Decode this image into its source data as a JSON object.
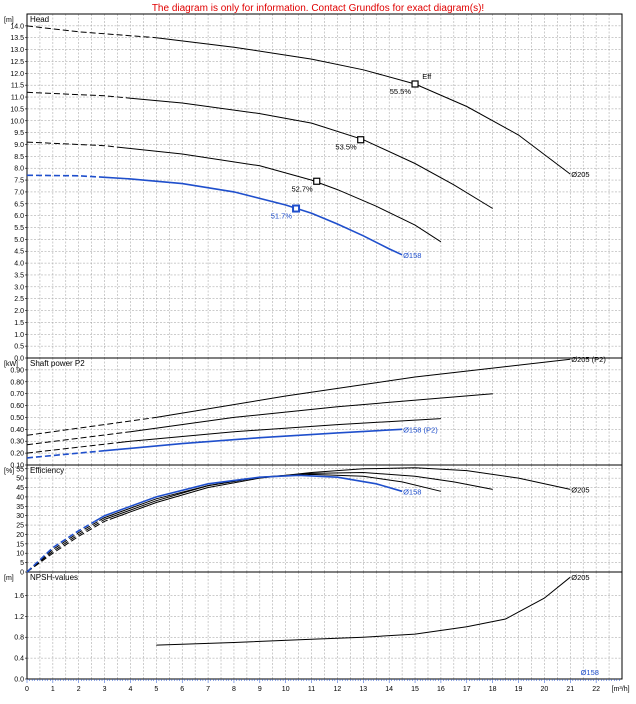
{
  "header": {
    "warning": "The diagram is only for information. Contact Grundfos for exact diagram(s)!"
  },
  "colors": {
    "black_curve": "#000000",
    "blue_curve": "#1f4fcc",
    "grid": "#9a9a9a"
  },
  "chart_data": {
    "type": "line",
    "x_axis": {
      "unit_label": "[m³/h]",
      "range": [
        0,
        23
      ],
      "ticks": [
        "0",
        "1",
        "2",
        "3",
        "4",
        "5",
        "6",
        "7",
        "8",
        "9",
        "10",
        "11",
        "12",
        "13",
        "14",
        "15",
        "16",
        "17",
        "18",
        "19",
        "20",
        "21",
        "22"
      ]
    },
    "panels": [
      {
        "id": "head",
        "title": "Head",
        "unit_label": "[m]",
        "ylim": [
          0,
          14.5
        ],
        "ticks": [
          "0.0",
          "0.5",
          "1.0",
          "1.5",
          "2.0",
          "2.5",
          "3.0",
          "3.5",
          "4.0",
          "4.5",
          "5.0",
          "5.5",
          "6.0",
          "6.5",
          "7.0",
          "7.5",
          "8.0",
          "8.5",
          "9.0",
          "9.5",
          "10.0",
          "10.5",
          "11.0",
          "11.5",
          "12.0",
          "12.5",
          "13.0",
          "13.5",
          "14.0"
        ],
        "series": [
          {
            "name": "Ø205",
            "color": "black",
            "dashed_until": 5,
            "points": [
              [
                0,
                14.0
              ],
              [
                2,
                13.75
              ],
              [
                5,
                13.5
              ],
              [
                8,
                13.1
              ],
              [
                11,
                12.6
              ],
              [
                13,
                12.15
              ],
              [
                15,
                11.55
              ],
              [
                17,
                10.6
              ],
              [
                19,
                9.4
              ],
              [
                21,
                7.75
              ]
            ]
          },
          {
            "color": "black",
            "dashed_until": 4,
            "points": [
              [
                0,
                11.2
              ],
              [
                3,
                11.05
              ],
              [
                6,
                10.75
              ],
              [
                9,
                10.3
              ],
              [
                11,
                9.9
              ],
              [
                13,
                9.2
              ],
              [
                15,
                8.2
              ],
              [
                16.5,
                7.3
              ],
              [
                18,
                6.3
              ]
            ]
          },
          {
            "color": "black",
            "dashed_until": 3.5,
            "points": [
              [
                0,
                9.1
              ],
              [
                3,
                8.95
              ],
              [
                6,
                8.6
              ],
              [
                9,
                8.1
              ],
              [
                11,
                7.5
              ],
              [
                12,
                7.1
              ],
              [
                13.5,
                6.4
              ],
              [
                15,
                5.6
              ],
              [
                16,
                4.9
              ]
            ]
          },
          {
            "name": "Ø158",
            "color": "blue",
            "dashed_until": 3,
            "points": [
              [
                0,
                7.7
              ],
              [
                2,
                7.68
              ],
              [
                4,
                7.55
              ],
              [
                6,
                7.35
              ],
              [
                8,
                7.0
              ],
              [
                10,
                6.45
              ],
              [
                11,
                6.1
              ],
              [
                12,
                5.65
              ],
              [
                13,
                5.15
              ],
              [
                14,
                4.6
              ],
              [
                14.5,
                4.35
              ]
            ]
          }
        ],
        "markers": [
          {
            "x": 15.0,
            "y": 11.55,
            "label": "55.5%",
            "color": "black"
          },
          {
            "x": 12.9,
            "y": 9.2,
            "label": "53.5%",
            "color": "black"
          },
          {
            "x": 11.2,
            "y": 7.45,
            "label": "52.7%",
            "color": "black"
          },
          {
            "x": 10.4,
            "y": 6.3,
            "label": "51.7%",
            "color": "blue"
          }
        ],
        "annotations": [
          {
            "text": "Eff",
            "x": 15.2,
            "y": 11.75
          }
        ]
      },
      {
        "id": "power",
        "title": "Shaft power P2",
        "unit_label": "[kW]",
        "ylim": [
          0.1,
          1.0
        ],
        "ticks": [
          "0.10",
          "0.20",
          "0.30",
          "0.40",
          "0.50",
          "0.60",
          "0.70",
          "0.80",
          "0.90"
        ],
        "series": [
          {
            "name": "Ø205 (P2)",
            "color": "black",
            "dashed_until": 5,
            "points": [
              [
                0,
                0.35
              ],
              [
                5,
                0.5
              ],
              [
                10,
                0.68
              ],
              [
                15,
                0.84
              ],
              [
                21,
                0.99
              ]
            ]
          },
          {
            "color": "black",
            "dashed_until": 4,
            "points": [
              [
                0,
                0.27
              ],
              [
                4,
                0.38
              ],
              [
                8,
                0.5
              ],
              [
                12,
                0.59
              ],
              [
                18,
                0.7
              ]
            ]
          },
          {
            "color": "black",
            "dashed_until": 3.5,
            "points": [
              [
                0,
                0.2
              ],
              [
                4,
                0.3
              ],
              [
                8,
                0.38
              ],
              [
                12,
                0.44
              ],
              [
                16,
                0.49
              ]
            ]
          },
          {
            "name": "Ø158 (P2)",
            "color": "blue",
            "dashed_until": 3,
            "points": [
              [
                0,
                0.16
              ],
              [
                3,
                0.22
              ],
              [
                6,
                0.28
              ],
              [
                9,
                0.33
              ],
              [
                12,
                0.37
              ],
              [
                14.5,
                0.4
              ]
            ]
          }
        ]
      },
      {
        "id": "efficiency",
        "title": "Efficiency",
        "unit_label": "[%]",
        "ylim": [
          0,
          57
        ],
        "ticks": [
          "0",
          "5",
          "10",
          "15",
          "20",
          "25",
          "30",
          "35",
          "40",
          "45",
          "50",
          "55"
        ],
        "series": [
          {
            "name": "Ø205",
            "color": "black",
            "dashed_until": 3.2,
            "points": [
              [
                0,
                0
              ],
              [
                1,
                10
              ],
              [
                2,
                19
              ],
              [
                3,
                27
              ],
              [
                5,
                37
              ],
              [
                7,
                45
              ],
              [
                9,
                50
              ],
              [
                11,
                53
              ],
              [
                13,
                55
              ],
              [
                15,
                55.5
              ],
              [
                17,
                54
              ],
              [
                19,
                50
              ],
              [
                21,
                44
              ]
            ]
          },
          {
            "color": "black",
            "dashed_until": 3.0,
            "points": [
              [
                0,
                0
              ],
              [
                1,
                11
              ],
              [
                2,
                20
              ],
              [
                3,
                28
              ],
              [
                5,
                38
              ],
              [
                7,
                46
              ],
              [
                9,
                50.5
              ],
              [
                11,
                52.5
              ],
              [
                13,
                53
              ],
              [
                15,
                51
              ],
              [
                16.5,
                48
              ],
              [
                18,
                44
              ]
            ]
          },
          {
            "color": "black",
            "dashed_until": 2.8,
            "points": [
              [
                0,
                0
              ],
              [
                1,
                12
              ],
              [
                2,
                21
              ],
              [
                3,
                29
              ],
              [
                5,
                39
              ],
              [
                7,
                46
              ],
              [
                9,
                50.5
              ],
              [
                11,
                52
              ],
              [
                13,
                51
              ],
              [
                14.5,
                48
              ],
              [
                16,
                43
              ]
            ]
          },
          {
            "name": "Ø158",
            "color": "blue",
            "dashed_until": 2.6,
            "points": [
              [
                0,
                0
              ],
              [
                1,
                13
              ],
              [
                2,
                22
              ],
              [
                3,
                30
              ],
              [
                5,
                40
              ],
              [
                7,
                47
              ],
              [
                9,
                50.5
              ],
              [
                10.5,
                51.5
              ],
              [
                12,
                50.5
              ],
              [
                13.5,
                47
              ],
              [
                14.5,
                43
              ]
            ]
          }
        ]
      },
      {
        "id": "npsh",
        "title": "NPSH-values",
        "unit_label": "[m]",
        "ylim": [
          0,
          2.05
        ],
        "ticks": [
          "0.0",
          "0.4",
          "0.8",
          "1.2",
          "1.6"
        ],
        "series": [
          {
            "name": "Ø205",
            "color": "black",
            "points": [
              [
                5,
                0.65
              ],
              [
                8,
                0.7
              ],
              [
                11,
                0.76
              ],
              [
                13,
                0.8
              ],
              [
                15,
                0.86
              ],
              [
                17,
                1.0
              ],
              [
                18.5,
                1.15
              ],
              [
                20,
                1.55
              ],
              [
                21,
                1.95
              ]
            ]
          }
        ],
        "point_labels": [
          {
            "text": "Ø158",
            "x": 21.4,
            "y": 0.08,
            "color": "blue"
          }
        ]
      }
    ]
  }
}
